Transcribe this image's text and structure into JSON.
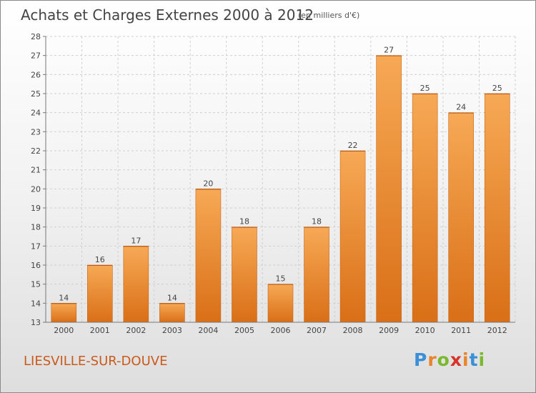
{
  "chart_data": {
    "type": "bar",
    "title": "Achats et Charges Externes 2000 à 2012",
    "subtitle": "(en milliers d'€)",
    "categories": [
      "2000",
      "2001",
      "2002",
      "2003",
      "2004",
      "2005",
      "2006",
      "2007",
      "2008",
      "2009",
      "2010",
      "2011",
      "2012"
    ],
    "values": [
      14,
      16,
      17,
      14,
      20,
      18,
      15,
      18,
      22,
      27,
      25,
      24,
      25
    ],
    "ylim": [
      13,
      28
    ],
    "yticks": [
      13,
      14,
      15,
      16,
      17,
      18,
      19,
      20,
      21,
      22,
      23,
      24,
      25,
      26,
      27,
      28
    ],
    "grid": true,
    "bar_color": "#e8842c",
    "data_labels": true
  },
  "footer": {
    "commune": "LIESVILLE-SUR-DOUVE",
    "logo_letters": [
      "P",
      "r",
      "o",
      "x",
      "i",
      "t",
      "i"
    ],
    "logo_colors": [
      "#3a8fd6",
      "#e8842c",
      "#7ab82e",
      "#d6332a",
      "#e8842c",
      "#3a8fd6",
      "#7ab82e"
    ]
  }
}
